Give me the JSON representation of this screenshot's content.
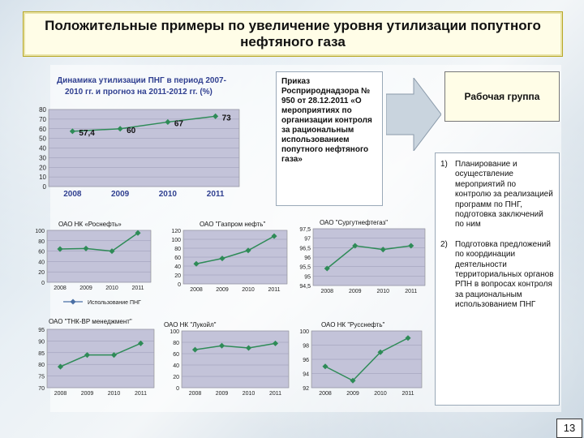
{
  "slide": {
    "title": "Положительные примеры по увеличение уровня утилизации попутного нефтяного газа",
    "page_number": "13"
  },
  "order": {
    "text": "Приказ Росприроднадзора № 950 от 28.12.2011 «О мероприятиях по организации контроля за рациональным использованием попутного нефтяного газа»"
  },
  "working_group": {
    "title": "Рабочая группа"
  },
  "tasks": [
    {
      "num": "1)",
      "text": "Планирование и осуществление мероприятий по контролю за реализацией программ по ПНГ, подготовка заключений по ним"
    },
    {
      "num": "2)",
      "text": "Подготовка предложений по координации деятельности территориальных органов РПН в вопросах контроля за рациональным использованием ПНГ"
    }
  ],
  "colors": {
    "line": "#2e8b57",
    "marker": "#2e8b57",
    "plot_bg": "#c3c3d9",
    "title_text": "#2f3f90",
    "arrow_fill": "#c9d4de"
  },
  "chart_data": [
    {
      "id": "main",
      "type": "line",
      "title": "Динамика утилизации ПНГ в период 2007-2010 гг. и прогноз на 2011-2012 гг. (%)",
      "categories": [
        "2008",
        "2009",
        "2010",
        "2011"
      ],
      "values": [
        57.4,
        60,
        67,
        73
      ],
      "value_labels": [
        "57,4",
        "60",
        "67",
        "73"
      ],
      "ylim": [
        0,
        80
      ],
      "yticks": [
        "0",
        "10",
        "20",
        "30",
        "40",
        "50",
        "60",
        "70",
        "80"
      ],
      "grid": true
    },
    {
      "id": "rosneft",
      "type": "line",
      "title": "ОАО НК «Роснефть»",
      "categories": [
        "2008",
        "2009",
        "2010",
        "2011"
      ],
      "values": [
        64,
        65,
        60,
        95
      ],
      "ylim": [
        0,
        100
      ],
      "yticks": [
        "0",
        "20",
        "40",
        "60",
        "80",
        "100"
      ],
      "legend": "Использование ПНГ",
      "grid": true
    },
    {
      "id": "gazpromneft",
      "type": "line",
      "title": "ОАО \"Газпром нефть\"",
      "categories": [
        "2008",
        "2009",
        "2010",
        "2011"
      ],
      "values": [
        45,
        57,
        75,
        107
      ],
      "ylim": [
        0,
        120
      ],
      "yticks": [
        "0",
        "20",
        "40",
        "60",
        "80",
        "100",
        "120"
      ],
      "grid": true
    },
    {
      "id": "surgutneftegaz",
      "type": "line",
      "title": "ОАО \"Сургутнефтегаз\"",
      "categories": [
        "2008",
        "2009",
        "2010",
        "2011"
      ],
      "values": [
        95.4,
        96.6,
        96.4,
        96.6
      ],
      "ylim": [
        94.5,
        97.5
      ],
      "yticks": [
        "94,5",
        "95",
        "95,5",
        "96",
        "96,5",
        "97",
        "97,5"
      ],
      "grid": true
    },
    {
      "id": "tnk_bp",
      "type": "line",
      "title": "ОАО \"ТНК-BP менеджмент\"",
      "categories": [
        "2008",
        "2009",
        "2010",
        "2011"
      ],
      "values": [
        79,
        84,
        84,
        89
      ],
      "ylim": [
        70,
        95
      ],
      "yticks": [
        "70",
        "75",
        "80",
        "85",
        "90",
        "95"
      ],
      "grid": true
    },
    {
      "id": "lukoil",
      "type": "line",
      "title": "ОАО НК \"Лукойл\"",
      "categories": [
        "2008",
        "2009",
        "2010",
        "2011"
      ],
      "values": [
        67,
        74,
        70,
        78
      ],
      "ylim": [
        0,
        100
      ],
      "yticks": [
        "0",
        "20",
        "40",
        "60",
        "80",
        "100"
      ],
      "grid": true
    },
    {
      "id": "russneft",
      "type": "line",
      "title": "ОАО НК \"Русснефть\"",
      "categories": [
        "2008",
        "2009",
        "2010",
        "2011"
      ],
      "values": [
        95,
        93,
        97,
        99
      ],
      "ylim": [
        92,
        100
      ],
      "yticks": [
        "92",
        "94",
        "96",
        "98",
        "100"
      ],
      "grid": true
    }
  ]
}
